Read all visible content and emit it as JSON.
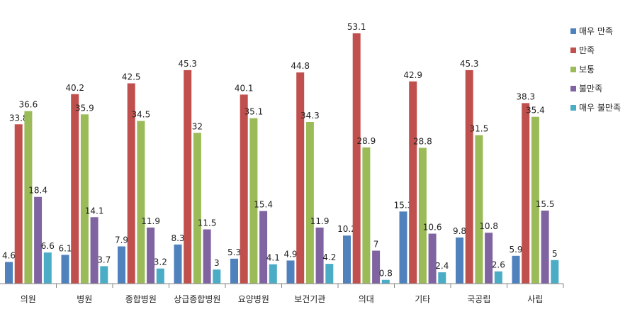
{
  "chart_data": {
    "type": "bar",
    "categories": [
      "의원",
      "병원",
      "종합병원",
      "상급종합병원",
      "요양병원",
      "보건기관",
      "의대",
      "기타",
      "국공립",
      "사립"
    ],
    "series": [
      {
        "name": "매우 만족",
        "color": "#4f81bd",
        "values": [
          4.6,
          6.1,
          7.9,
          8.3,
          5.3,
          4.9,
          10.2,
          15.3,
          9.8,
          5.9
        ]
      },
      {
        "name": "만족",
        "color": "#c0504d",
        "values": [
          33.8,
          40.2,
          42.5,
          45.3,
          40.1,
          44.8,
          53.1,
          42.9,
          45.3,
          38.3
        ]
      },
      {
        "name": "보통",
        "color": "#9bbb59",
        "values": [
          36.6,
          35.9,
          34.5,
          32,
          35.1,
          34.3,
          28.9,
          28.8,
          31.5,
          35.4
        ]
      },
      {
        "name": "불만족",
        "color": "#8064a2",
        "values": [
          18.4,
          14.1,
          11.9,
          11.5,
          15.4,
          11.9,
          7,
          10.6,
          10.8,
          15.5
        ]
      },
      {
        "name": "매우 불만족",
        "color": "#4bacc6",
        "values": [
          6.6,
          3.7,
          3.2,
          3,
          4.1,
          4.2,
          0.8,
          2.4,
          2.6,
          5
        ]
      }
    ],
    "ylim": [
      0,
      55
    ],
    "legend": "right",
    "grid": false
  }
}
